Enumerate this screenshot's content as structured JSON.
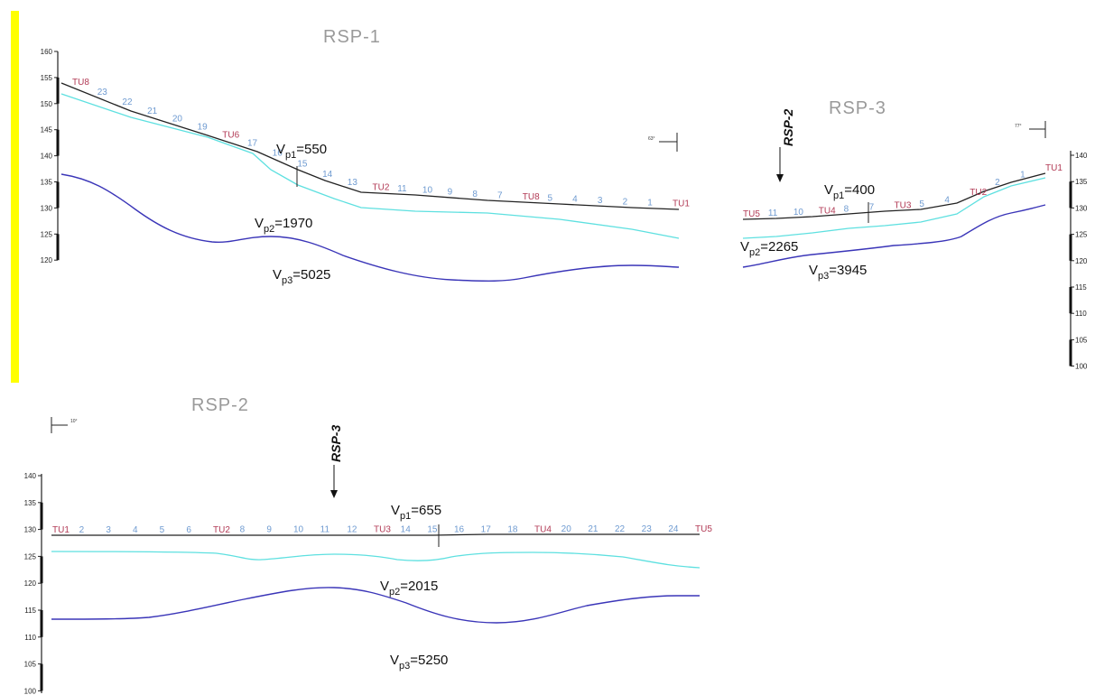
{
  "colors": {
    "topography": "#222222",
    "layer1": "#5ee0e0",
    "layer2": "#3a35b8",
    "highlight": "#ffff00",
    "geophone": "#6f9bd1",
    "shot": "#b23a55"
  },
  "rsp1": {
    "title": "RSP-1",
    "axis_ticks": [
      "160",
      "155",
      "150",
      "145",
      "140",
      "135",
      "130",
      "125",
      "120"
    ],
    "vp1_main": "V",
    "vp1_sub": "p1",
    "vp1_value": "=550",
    "vp2_main": "V",
    "vp2_sub": "p2",
    "vp2_value": "=1970",
    "vp3_main": "V",
    "vp3_sub": "p3",
    "vp3_value": "=5025",
    "orientation_label": "63°",
    "stations": [
      "TU8",
      "23",
      "22",
      "21",
      "20",
      "19",
      "TU6",
      "17",
      "16",
      "15",
      "14",
      "13",
      "TU2",
      "11",
      "10",
      "9",
      "8",
      "7",
      "TU8",
      "5",
      "4",
      "3",
      "2",
      "1",
      "TU1"
    ]
  },
  "rsp3": {
    "title": "RSP-3",
    "axis_ticks": [
      "140",
      "135",
      "130",
      "125",
      "120",
      "115",
      "110",
      "105",
      "100"
    ],
    "vp1_main": "V",
    "vp1_sub": "p1",
    "vp1_value": "=400",
    "vp2_main": "V",
    "vp2_sub": "p2",
    "vp2_value": "=2265",
    "vp3_main": "V",
    "vp3_sub": "p3",
    "vp3_value": "=3945",
    "intersect_label": "RSP-2",
    "orientation_label": "77°",
    "stations": [
      "TU5",
      "11",
      "10",
      "TU4",
      "8",
      "7",
      "TU3",
      "5",
      "4",
      "TU2",
      "2",
      "1",
      "TU1"
    ]
  },
  "rsp2": {
    "title": "RSP-2",
    "axis_ticks": [
      "140",
      "135",
      "130",
      "125",
      "120",
      "115",
      "110",
      "105",
      "100"
    ],
    "vp1_main": "V",
    "vp1_sub": "p1",
    "vp1_value": "=655",
    "vp2_main": "V",
    "vp2_sub": "p2",
    "vp2_value": "=2015",
    "vp3_main": "V",
    "vp3_sub": "p3",
    "vp3_value": "=5250",
    "intersect_label": "RSP-3",
    "orientation_label": "10°",
    "stations": [
      "TU1",
      "2",
      "3",
      "4",
      "5",
      "6",
      "TU2",
      "8",
      "9",
      "10",
      "11",
      "12",
      "TU3",
      "14",
      "15",
      "16",
      "17",
      "18",
      "TU4",
      "20",
      "21",
      "22",
      "23",
      "24",
      "TU5"
    ]
  }
}
